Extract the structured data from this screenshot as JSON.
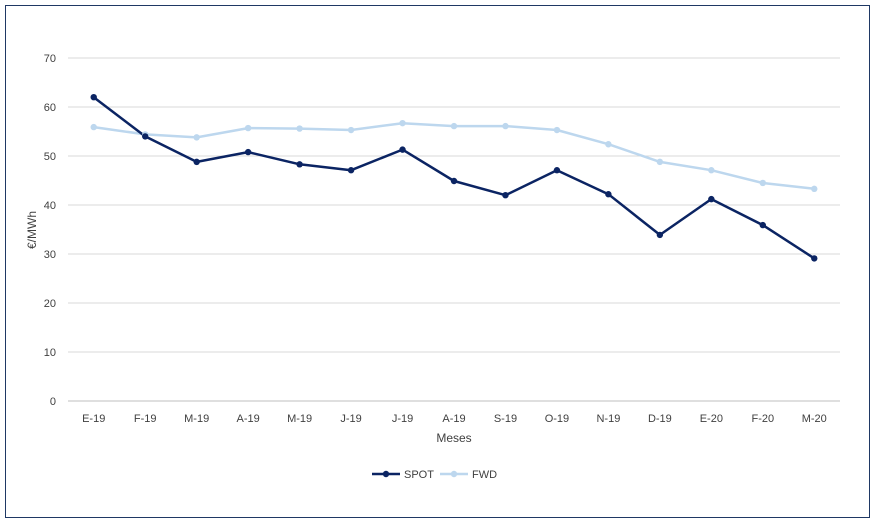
{
  "chart_data": {
    "type": "line",
    "title": "",
    "xlabel": "Meses",
    "ylabel": "€/MWh",
    "ylim": [
      0,
      70
    ],
    "yticks": [
      0,
      10,
      20,
      30,
      40,
      50,
      60,
      70
    ],
    "grid": true,
    "legend_position": "bottom",
    "categories": [
      "E-19",
      "F-19",
      "M-19",
      "A-19",
      "M-19",
      "J-19",
      "J-19",
      "A-19",
      "S-19",
      "O-19",
      "N-19",
      "D-19",
      "E-20",
      "F-20",
      "M-20"
    ],
    "series": [
      {
        "name": "SPOT",
        "color": "#0b2463",
        "values": [
          62.0,
          54.0,
          48.8,
          50.8,
          48.3,
          47.1,
          51.3,
          44.9,
          42.0,
          47.1,
          42.2,
          33.9,
          41.2,
          35.9,
          29.1
        ]
      },
      {
        "name": "FWD",
        "color": "#bdd7ee",
        "values": [
          55.9,
          54.4,
          53.8,
          55.7,
          55.6,
          55.3,
          56.7,
          56.1,
          56.1,
          55.3,
          52.4,
          48.8,
          47.1,
          44.5,
          43.3
        ]
      }
    ]
  }
}
